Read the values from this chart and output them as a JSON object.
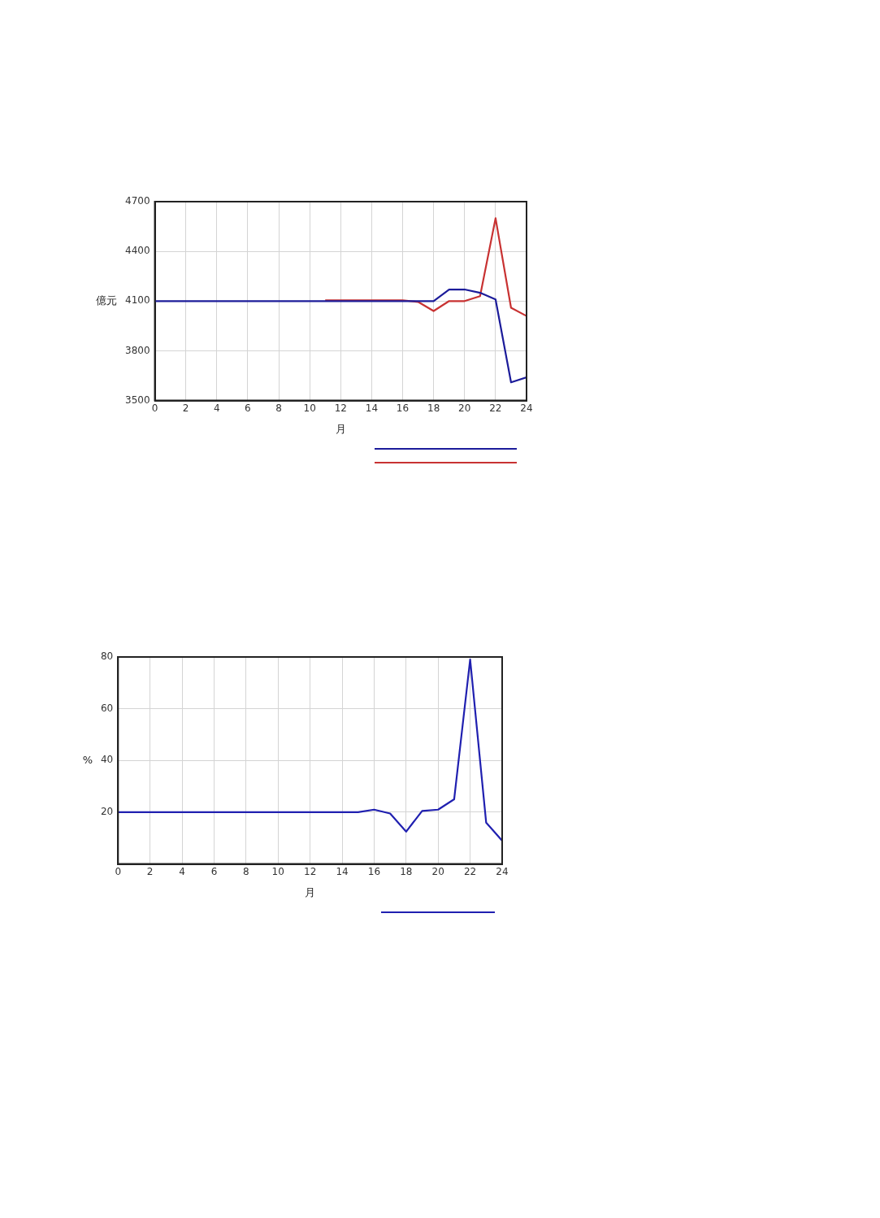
{
  "chart_data": [
    {
      "type": "line",
      "xlabel": "月",
      "ylabel": "億元",
      "x": [
        0,
        1,
        2,
        3,
        4,
        5,
        6,
        7,
        8,
        9,
        10,
        11,
        12,
        13,
        14,
        15,
        16,
        17,
        18,
        19,
        20,
        21,
        22,
        23,
        24
      ],
      "xlim": [
        0,
        24
      ],
      "xticks": [
        0,
        2,
        4,
        6,
        8,
        10,
        12,
        14,
        16,
        18,
        20,
        22,
        24
      ],
      "ylim": [
        3500,
        4700
      ],
      "yticks": [
        3500,
        3800,
        4100,
        4400,
        4700
      ],
      "grid": true,
      "legend": false,
      "marker": "none",
      "line_style": "solid",
      "series": [
        {
          "color": "#1c1c9a",
          "values": [
            4100,
            4100,
            4100,
            4100,
            4100,
            4100,
            4100,
            4100,
            4100,
            4100,
            4100,
            4100,
            4100,
            4100,
            4100,
            4100,
            4100,
            4100,
            4100,
            4170,
            4170,
            4150,
            4110,
            3610,
            3640
          ]
        },
        {
          "color": "#c83232",
          "values": [
            null,
            null,
            null,
            null,
            null,
            null,
            null,
            null,
            null,
            null,
            null,
            4105,
            4105,
            4105,
            4105,
            4105,
            4105,
            4095,
            4040,
            4100,
            4100,
            4130,
            4600,
            4060,
            4010
          ]
        }
      ]
    },
    {
      "type": "line",
      "xlabel": "月",
      "ylabel": "%",
      "x": [
        0,
        1,
        2,
        3,
        4,
        5,
        6,
        7,
        8,
        9,
        10,
        11,
        12,
        13,
        14,
        15,
        16,
        17,
        18,
        19,
        20,
        21,
        22,
        23,
        24
      ],
      "xlim": [
        0,
        24
      ],
      "xticks": [
        0,
        2,
        4,
        6,
        8,
        10,
        12,
        14,
        16,
        18,
        20,
        22,
        24
      ],
      "ylim": [
        0,
        80
      ],
      "yticks": [
        20,
        40,
        60,
        80
      ],
      "grid": true,
      "legend": false,
      "marker": "none",
      "line_style": "solid",
      "series": [
        {
          "color": "#2020b0",
          "values": [
            20,
            20,
            20,
            20,
            20,
            20,
            20,
            20,
            20,
            20,
            20,
            20,
            20,
            20,
            20,
            20,
            21,
            19.5,
            12.5,
            20.5,
            21,
            25,
            79,
            16,
            9
          ]
        }
      ]
    }
  ]
}
